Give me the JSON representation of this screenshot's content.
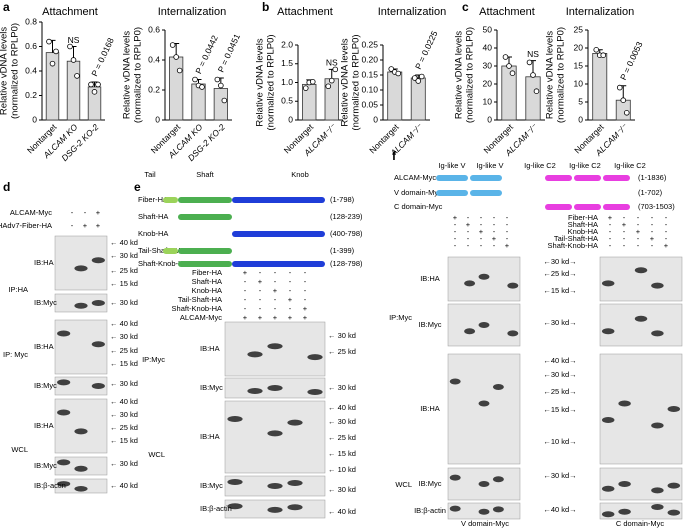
{
  "chart_data": [
    {
      "type": "bar",
      "panel": "a",
      "title": "Attachment",
      "ylabel": [
        "Relative vDNA levels",
        "(normalized to RPLP0)"
      ],
      "categories": [
        "Nontarget",
        "ALCAM KO",
        "DSG-2 KO-2"
      ],
      "values": [
        0.55,
        0.48,
        0.27
      ],
      "errors": [
        0.1,
        0.12,
        0.04
      ],
      "points": [
        [
          0.64,
          0.46,
          0.56
        ],
        [
          0.6,
          0.49,
          0.36
        ],
        [
          0.29,
          0.23,
          0.29
        ]
      ],
      "annotations": [
        null,
        "NS",
        "P = 0.0168"
      ],
      "color": "#d9d9d9",
      "ylim": [
        0,
        0.8
      ],
      "yticks": [
        0,
        0.2,
        0.4,
        0.6,
        0.8
      ]
    },
    {
      "type": "bar",
      "title": "Internalization",
      "ylabel": [
        "Relative vDNA levels",
        "(normalized to RPLP0)"
      ],
      "categories": [
        "Nontarget",
        "ALCAM KO",
        "DSG-2 KO-2"
      ],
      "values": [
        0.42,
        0.24,
        0.21
      ],
      "errors": [
        0.09,
        0.03,
        0.07
      ],
      "points": [
        [
          0.5,
          0.42,
          0.33
        ],
        [
          0.27,
          0.23,
          0.22
        ],
        [
          0.27,
          0.23,
          0.13
        ]
      ],
      "annotations": [
        null,
        "P = 0.0442",
        "P = 0.0451"
      ],
      "color": "#d9d9d9",
      "ylim": [
        0,
        0.6
      ],
      "yticks": [
        0,
        0.2,
        0.4,
        0.6
      ]
    },
    {
      "type": "bar",
      "panel": "b",
      "title": "Attachment",
      "ylabel": [
        "Relative vDNA levels",
        "(normalized to RPLP0)"
      ],
      "categories": [
        "Nontarget",
        "ALCAM⁻/⁻"
      ],
      "values": [
        0.95,
        1.1
      ],
      "errors": [
        0.12,
        0.25
      ],
      "points": [
        [
          0.85,
          1.0,
          1.02
        ],
        [
          0.9,
          1.05,
          1.35
        ]
      ],
      "annotations": [
        null,
        "NS"
      ],
      "color": "#d9d9d9",
      "ylim": [
        0,
        2
      ],
      "yticks": [
        0,
        0.5,
        {
          "value": 1,
          "label": "1.0"
        },
        1.5,
        {
          "value": 2,
          "label": "2.0"
        }
      ]
    },
    {
      "type": "bar",
      "title": "Internalization",
      "ylabel": [
        "Relative vDNA levels",
        "(normalized to RPLP0)"
      ],
      "categories": [
        "Nontarget",
        "ALCAM⁻/⁻"
      ],
      "values": [
        0.16,
        0.14
      ],
      "errors": [
        0.01,
        0.01
      ],
      "points": [
        [
          0.17,
          0.16,
          0.155
        ],
        [
          0.14,
          0.13,
          0.145
        ]
      ],
      "annotations": [
        null,
        "P = 0.0225"
      ],
      "color": "#d9d9d9",
      "ylim": [
        0,
        0.25
      ],
      "yticks": [
        0,
        0.05,
        {
          "value": 0.1,
          "label": "0.10"
        },
        0.15,
        {
          "value": 0.2,
          "label": "0.20"
        },
        0.25
      ]
    },
    {
      "type": "bar",
      "panel": "c",
      "title": "Attachment",
      "ylabel": [
        "Relative vDNA levels",
        "(normalized to RPLP0)"
      ],
      "categories": [
        "Nontarget",
        "ALCAM⁻/⁻"
      ],
      "values": [
        30,
        24
      ],
      "errors": [
        5,
        9
      ],
      "points": [
        [
          35,
          30,
          26
        ],
        [
          32,
          25,
          16
        ]
      ],
      "annotations": [
        null,
        "NS"
      ],
      "color": "#d9d9d9",
      "ylim": [
        0,
        50
      ],
      "yticks": [
        0,
        10,
        20,
        30,
        40,
        50
      ]
    },
    {
      "type": "bar",
      "title": "Internalization",
      "ylabel": [
        "Relative vDNA levels",
        "(normalized to RPLP0)"
      ],
      "categories": [
        "Nontarget",
        "ALCAM⁻/⁻"
      ],
      "values": [
        18.5,
        5.5
      ],
      "errors": [
        1,
        4
      ],
      "points": [
        [
          19.5,
          18,
          18
        ],
        [
          9,
          5.5,
          2
        ]
      ],
      "annotations": [
        null,
        "P = 0.0053"
      ],
      "color": "#d9d9d9",
      "ylim": [
        0,
        25
      ],
      "yticks": [
        0,
        5,
        10,
        15,
        20,
        25
      ]
    }
  ],
  "blot_d": {
    "label": "d",
    "conditions": [
      {
        "name": "ALCAM-Myc",
        "signs": [
          "-",
          "-",
          "+"
        ]
      },
      {
        "name": "HAdv7-Fiber-HA",
        "signs": [
          "-",
          "+",
          "+"
        ]
      }
    ],
    "groups": [
      {
        "name": "IP:HA",
        "strips": [
          {
            "ib": "IB:HA",
            "markers": [
              "← 40 kd",
              "← 30 kd",
              "← 25 kd",
              "← 15 kd"
            ]
          },
          {
            "ib": "IB:Myc",
            "markers": [
              "← 30 kd"
            ]
          }
        ]
      },
      {
        "name": "IP: Myc",
        "strips": [
          {
            "ib": "IB:HA",
            "markers": [
              "← 40 kd",
              "← 30 kd",
              "← 25 kd",
              "← 15 kd"
            ]
          },
          {
            "ib": "IB:Myc",
            "markers": [
              "← 30 kd"
            ]
          }
        ]
      },
      {
        "name": "WCL",
        "strips": [
          {
            "ib": "IB:HA",
            "markers": [
              "← 40 kd",
              "← 30 kd",
              "← 25 kd",
              "← 15 kd"
            ]
          },
          {
            "ib": "IB:Myc",
            "markers": [
              "← 30 kd"
            ]
          },
          {
            "ib": "IB:β-actin",
            "markers": [
              "← 40 kd"
            ]
          }
        ]
      }
    ]
  },
  "blot_e": {
    "label": "e",
    "domains": [
      "Tail",
      "Shaft",
      "Knob"
    ],
    "constructs": [
      {
        "name": "Fiber-HA",
        "range": "(1-798)"
      },
      {
        "name": "Shaft-HA",
        "range": "(128-239)"
      },
      {
        "name": "Knob-HA",
        "range": "(400-798)"
      },
      {
        "name": "Tail-Shaft-HA",
        "range": "(1-399)"
      },
      {
        "name": "Shaft-Knob-HA",
        "range": "(128-798)"
      }
    ],
    "conditions": [
      {
        "name": "Fiber-HA",
        "signs": [
          "+",
          "-",
          "-",
          "-",
          "-"
        ]
      },
      {
        "name": "Shaft-HA",
        "signs": [
          "-",
          "+",
          "-",
          "-",
          "-"
        ]
      },
      {
        "name": "Knob-HA",
        "signs": [
          "-",
          "-",
          "+",
          "-",
          "-"
        ]
      },
      {
        "name": "Tail-Shaft-HA",
        "signs": [
          "-",
          "-",
          "-",
          "+",
          "-"
        ]
      },
      {
        "name": "Shaft-Knob-HA",
        "signs": [
          "-",
          "-",
          "-",
          "-",
          "+"
        ]
      },
      {
        "name": "ALCAM-Myc",
        "signs": [
          "+",
          "+",
          "+",
          "+",
          "+"
        ]
      }
    ],
    "groups": [
      {
        "name": "IP:Myc",
        "strips": [
          {
            "ib": "IB:HA",
            "markers": [
              "← 30 kd",
              "← 25 kd"
            ]
          },
          {
            "ib": "IB:Myc",
            "markers": [
              "← 30 kd"
            ]
          }
        ]
      },
      {
        "name": "WCL",
        "strips": [
          {
            "ib": "IB:HA",
            "markers": [
              "← 40 kd",
              "← 30 kd",
              "← 25 kd",
              "← 15 kd",
              "← 10 kd"
            ]
          },
          {
            "ib": "IB:Myc",
            "markers": [
              "← 30 kd"
            ]
          },
          {
            "ib": "IB:β-actin",
            "markers": [
              "← 40 kd"
            ]
          }
        ]
      }
    ]
  },
  "blot_f": {
    "label": "f",
    "domains": [
      "Ig-like V",
      "Ig-like V",
      "Ig-like C2",
      "Ig-like C2",
      "Ig-like C2"
    ],
    "constructs": [
      {
        "name": "ALCAM-Myc",
        "range": "(1-1836)"
      },
      {
        "name": "V domain-Myc",
        "range": "(1-702)"
      },
      {
        "name": "C domain-Myc",
        "range": "(703-1503)"
      }
    ],
    "conditions": [
      {
        "name": "Fiber-HA",
        "signs": [
          "+",
          "-",
          "-",
          "-",
          "-",
          "+",
          "-",
          "-",
          "-",
          "-"
        ]
      },
      {
        "name": "Shaft-HA",
        "signs": [
          "-",
          "+",
          "-",
          "-",
          "-",
          "-",
          "+",
          "-",
          "-",
          "-"
        ]
      },
      {
        "name": "Knob-HA",
        "signs": [
          "-",
          "-",
          "+",
          "-",
          "-",
          "-",
          "-",
          "+",
          "-",
          "-"
        ]
      },
      {
        "name": "Tail-Shaft-HA",
        "signs": [
          "-",
          "-",
          "-",
          "+",
          "-",
          "-",
          "-",
          "-",
          "+",
          "-"
        ]
      },
      {
        "name": "Shaft-Knob-HA",
        "signs": [
          "-",
          "-",
          "-",
          "-",
          "+",
          "-",
          "-",
          "-",
          "-",
          "+"
        ]
      }
    ],
    "groups": [
      {
        "name": "IP:Myc",
        "strips": [
          {
            "ib": "IB:HA",
            "markers": [
              "←30 kd→",
              "←25 kd→",
              "←15 kd→"
            ]
          },
          {
            "ib": "IB:Myc",
            "markers": [
              "←30 kd→"
            ]
          }
        ]
      },
      {
        "name": "WCL",
        "strips": [
          {
            "ib": "IB:HA",
            "markers": [
              "←40 kd→",
              "←30 kd→",
              "←25 kd→",
              "←15 kd→",
              "←10 kd→"
            ]
          },
          {
            "ib": "IB:Myc",
            "markers": [
              "←30 kd→"
            ]
          },
          {
            "ib": "IB:β-actin",
            "markers": [
              "←40 kd→"
            ]
          }
        ]
      }
    ],
    "footer": [
      "V domain-Myc",
      "C domain-Myc"
    ]
  }
}
